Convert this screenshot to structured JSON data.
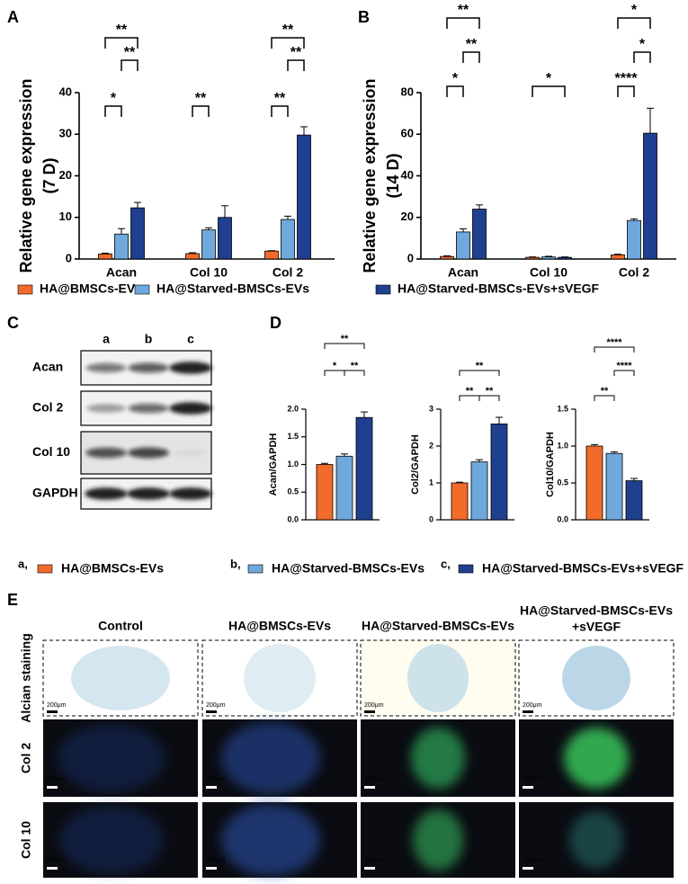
{
  "panels": [
    "A",
    "B",
    "C",
    "D",
    "E"
  ],
  "chart_data": [
    {
      "type": "bar",
      "ylabel": [
        "Relative gene expression",
        "(7 D)"
      ],
      "categories": [
        "Acan",
        "Col 10",
        "Col 2"
      ],
      "series": [
        {
          "name": "HA@BMSCs-EVs",
          "color": "#f26b2a",
          "values": [
            1.2,
            1.3,
            1.9
          ],
          "errors": [
            0.2,
            0.2,
            0.1
          ]
        },
        {
          "name": "HA@Starved-BMSCs-EVs",
          "color": "#6fa8dc",
          "values": [
            6,
            7,
            9.5
          ],
          "errors": [
            1.3,
            0.5,
            0.8
          ]
        },
        {
          "name": "HA@Starved-BMSCs-EVs+sVEGF",
          "color": "#1f3f8f",
          "values": [
            12.3,
            10,
            29.8
          ],
          "errors": [
            1.3,
            2.8,
            2
          ]
        }
      ],
      "ylim": [
        0,
        40
      ],
      "yticks": [
        0,
        10,
        20,
        30,
        40
      ],
      "annotations": [
        {
          "label": "*",
          "category": 0,
          "bars": [
            0,
            1
          ]
        },
        {
          "label": "**",
          "category": 0,
          "bars": [
            1,
            2
          ]
        },
        {
          "label": "**",
          "category": 0,
          "bars": [
            0,
            2
          ]
        },
        {
          "label": "**",
          "category": 1,
          "bars": [
            0,
            1
          ]
        },
        {
          "label": "**",
          "category": 2,
          "bars": [
            0,
            1
          ]
        },
        {
          "label": "**",
          "category": 2,
          "bars": [
            1,
            2
          ]
        },
        {
          "label": "**",
          "category": 2,
          "bars": [
            0,
            2
          ]
        }
      ]
    },
    {
      "type": "bar",
      "ylabel": [
        "Relative gene expression",
        "(14 D)"
      ],
      "categories": [
        "Acan",
        "Col 10",
        "Col 2"
      ],
      "series": [
        {
          "color": "#f26b2a",
          "values": [
            1.2,
            0.8,
            2
          ],
          "errors": [
            0.3,
            0.2,
            0.3
          ]
        },
        {
          "color": "#6fa8dc",
          "values": [
            13,
            1.0,
            18.5
          ],
          "errors": [
            1.5,
            0.3,
            0.8
          ]
        },
        {
          "color": "#1f3f8f",
          "values": [
            24,
            0.8,
            60.5
          ],
          "errors": [
            2,
            0.2,
            12
          ]
        }
      ],
      "ylim": [
        0,
        80
      ],
      "yticks": [
        0,
        20,
        40,
        60,
        80
      ],
      "annotations": [
        {
          "label": "*",
          "category": 0,
          "bars": [
            0,
            1
          ]
        },
        {
          "label": "**",
          "category": 0,
          "bars": [
            1,
            2
          ]
        },
        {
          "label": "**",
          "category": 0,
          "bars": [
            0,
            2
          ]
        },
        {
          "label": "*",
          "category": 1,
          "bars": [
            0,
            2
          ]
        },
        {
          "label": "****",
          "category": 2,
          "bars": [
            0,
            1
          ]
        },
        {
          "label": "*",
          "category": 2,
          "bars": [
            1,
            2
          ]
        },
        {
          "label": "*",
          "category": 2,
          "bars": [
            0,
            2
          ]
        }
      ]
    },
    {
      "type": "bar",
      "ylabel": "Acan/GAPDH",
      "values": [
        1.0,
        1.15,
        1.85
      ],
      "errors": [
        0.02,
        0.04,
        0.1
      ],
      "colors": [
        "#f26b2a",
        "#6fa8dc",
        "#1f3f8f"
      ],
      "ylim": [
        0,
        2
      ],
      "yticks": [
        {
          "value": 0,
          "label": "0.0"
        },
        0.5,
        {
          "value": 1,
          "label": "1.0"
        },
        1.5,
        {
          "value": 2,
          "label": "2.0"
        }
      ],
      "annotations": [
        {
          "label": "*",
          "bars": [
            0,
            1
          ]
        },
        {
          "label": "**",
          "bars": [
            1,
            2
          ]
        },
        {
          "label": "**",
          "bars": [
            0,
            2
          ]
        }
      ]
    },
    {
      "type": "bar",
      "ylabel": "Col2/GAPDH",
      "values": [
        1.0,
        1.57,
        2.6
      ],
      "errors": [
        0.02,
        0.06,
        0.18
      ],
      "colors": [
        "#f26b2a",
        "#6fa8dc",
        "#1f3f8f"
      ],
      "ylim": [
        0,
        3
      ],
      "yticks": [
        0,
        1,
        2,
        3
      ],
      "annotations": [
        {
          "label": "**",
          "bars": [
            0,
            1
          ]
        },
        {
          "label": "**",
          "bars": [
            1,
            2
          ]
        },
        {
          "label": "**",
          "bars": [
            0,
            2
          ]
        }
      ]
    },
    {
      "type": "bar",
      "ylabel": "Col10/GAPDH",
      "values": [
        1.0,
        0.9,
        0.53
      ],
      "errors": [
        0.02,
        0.02,
        0.03
      ],
      "colors": [
        "#f26b2a",
        "#6fa8dc",
        "#1f3f8f"
      ],
      "ylim": [
        0,
        1.5
      ],
      "yticks": [
        {
          "value": 0,
          "label": "0.0"
        },
        0.5,
        {
          "value": 1,
          "label": "1.0"
        },
        1.5
      ],
      "annotations": [
        {
          "label": "**",
          "bars": [
            0,
            1
          ]
        },
        {
          "label": "****",
          "bars": [
            1,
            2
          ]
        },
        {
          "label": "****",
          "bars": [
            0,
            2
          ]
        }
      ]
    }
  ],
  "legend_d": [
    {
      "prefix": "a,"
    },
    {
      "prefix": "b,"
    },
    {
      "prefix": "c,"
    }
  ],
  "blot": {
    "lanes": [
      "a",
      "b",
      "c"
    ],
    "rows": [
      "Acan",
      "Col 2",
      "Col 10",
      "GAPDH"
    ]
  },
  "images": {
    "columns": [
      [
        "Control"
      ],
      [
        "HA@BMSCs-EVs"
      ],
      [
        "HA@Starved-BMSCs-EVs"
      ],
      [
        "HA@Starved-BMSCs-EVs",
        "+sVEGF"
      ]
    ],
    "rows": [
      "Alcian staining",
      "Col 2",
      "Col 10"
    ],
    "scale_bar": "200μm"
  }
}
